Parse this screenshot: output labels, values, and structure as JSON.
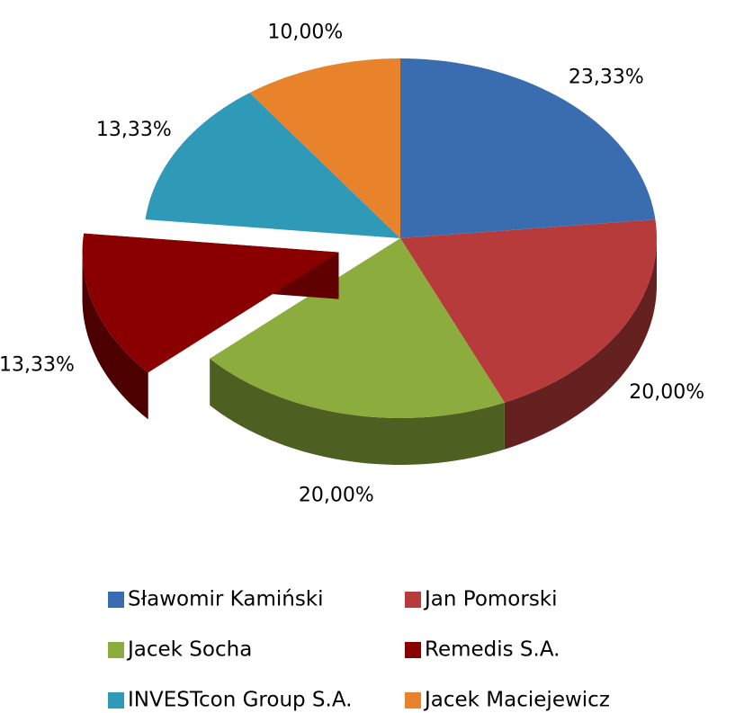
{
  "chart_data": {
    "type": "pie",
    "categories": [
      "Sławomir Kamiński",
      "Jan Pomorski",
      "Jacek Socha",
      "Remedis S.A.",
      "INVESTcon Group S.A.",
      "Jacek Maciejewicz"
    ],
    "values": [
      23.33,
      20,
      20,
      13.33,
      13.33,
      10
    ],
    "value_labels": [
      "23,33%",
      "20,00%",
      "20,00%",
      "13,33%",
      "13,33%",
      "10,00%"
    ],
    "colors": [
      "#3a6cb0",
      "#b83b3b",
      "#8dac3e",
      "#8a0000",
      "#2f9ab7",
      "#e8832b"
    ],
    "explode": [
      false,
      false,
      false,
      true,
      false,
      false
    ]
  }
}
